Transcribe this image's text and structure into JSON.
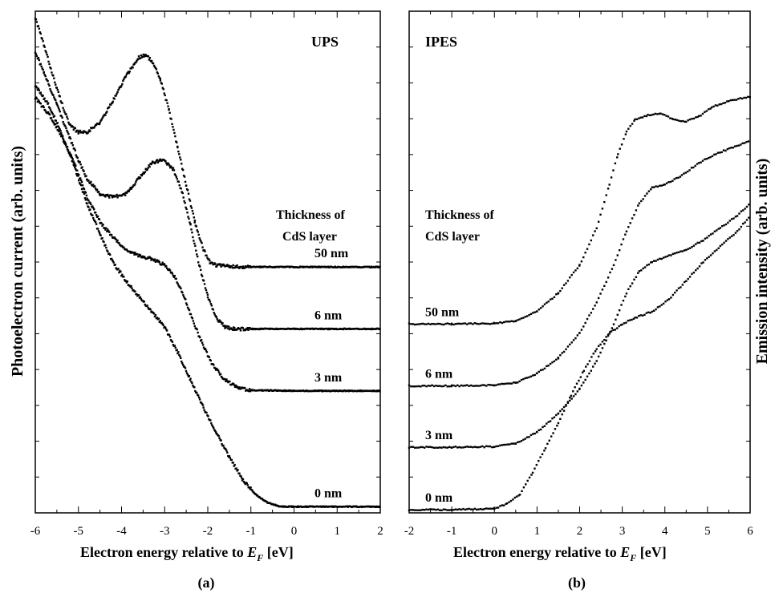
{
  "chart_data": [
    {
      "type": "scatter",
      "panel_label": "(a)",
      "annotation": "UPS",
      "xlabel_prefix": "Electron energy relative to",
      "xlabel_symbol": "E",
      "xlabel_subscript": "F",
      "xlabel_unit": "[eV]",
      "ylabel": "Photoelectron current  (arb. units)",
      "xlim": [
        -6,
        2
      ],
      "xticks": [
        "-6",
        "-5",
        "-4",
        "-3",
        "-2",
        "-1",
        "0",
        "1",
        "2"
      ],
      "legend_title": [
        "Thickness of",
        "CdS layer"
      ],
      "series": [
        {
          "name": "50 nm",
          "baseline": 3,
          "points": [
            [
              -6.0,
              7.9
            ],
            [
              -5.8,
              7.45
            ],
            [
              -5.5,
              6.75
            ],
            [
              -5.2,
              6.15
            ],
            [
              -5.0,
              6.05
            ],
            [
              -4.8,
              6.05
            ],
            [
              -4.5,
              6.2
            ],
            [
              -4.2,
              6.55
            ],
            [
              -3.9,
              6.95
            ],
            [
              -3.6,
              7.25
            ],
            [
              -3.45,
              7.3
            ],
            [
              -3.3,
              7.2
            ],
            [
              -3.1,
              6.9
            ],
            [
              -2.9,
              6.4
            ],
            [
              -2.7,
              5.8
            ],
            [
              -2.5,
              5.2
            ],
            [
              -2.3,
              4.6
            ],
            [
              -2.1,
              4.15
            ],
            [
              -1.95,
              3.95
            ],
            [
              -1.8,
              3.9
            ],
            [
              -1.5,
              3.88
            ],
            [
              -1.0,
              3.87
            ],
            [
              0,
              3.87
            ],
            [
              1.0,
              3.87
            ],
            [
              2.0,
              3.87
            ]
          ]
        },
        {
          "name": "6 nm",
          "baseline": 2,
          "points": [
            [
              -6.0,
              7.35
            ],
            [
              -5.8,
              7.0
            ],
            [
              -5.5,
              6.5
            ],
            [
              -5.2,
              5.95
            ],
            [
              -5.0,
              5.6
            ],
            [
              -4.8,
              5.3
            ],
            [
              -4.5,
              5.05
            ],
            [
              -4.2,
              5.0
            ],
            [
              -3.9,
              5.05
            ],
            [
              -3.6,
              5.3
            ],
            [
              -3.3,
              5.55
            ],
            [
              -3.05,
              5.6
            ],
            [
              -2.8,
              5.45
            ],
            [
              -2.6,
              5.1
            ],
            [
              -2.4,
              4.55
            ],
            [
              -2.2,
              3.9
            ],
            [
              -2.0,
              3.4
            ],
            [
              -1.8,
              3.05
            ],
            [
              -1.6,
              2.9
            ],
            [
              -1.4,
              2.87
            ],
            [
              -1.0,
              2.87
            ],
            [
              0,
              2.87
            ],
            [
              1.0,
              2.87
            ],
            [
              2.0,
              2.87
            ]
          ]
        },
        {
          "name": "3 nm",
          "baseline": 1,
          "points": [
            [
              -6.0,
              6.6
            ],
            [
              -5.7,
              6.35
            ],
            [
              -5.4,
              6.0
            ],
            [
              -5.1,
              5.55
            ],
            [
              -4.8,
              5.0
            ],
            [
              -4.5,
              4.6
            ],
            [
              -4.2,
              4.35
            ],
            [
              -3.9,
              4.15
            ],
            [
              -3.6,
              4.05
            ],
            [
              -3.3,
              4.0
            ],
            [
              -3.0,
              3.9
            ],
            [
              -2.75,
              3.7
            ],
            [
              -2.5,
              3.3
            ],
            [
              -2.2,
              2.75
            ],
            [
              -1.9,
              2.3
            ],
            [
              -1.6,
              2.05
            ],
            [
              -1.3,
              1.92
            ],
            [
              -1.0,
              1.88
            ],
            [
              0,
              1.87
            ],
            [
              1.0,
              1.87
            ],
            [
              2.0,
              1.87
            ]
          ]
        },
        {
          "name": "0 nm",
          "baseline": 0,
          "points": [
            [
              -6.0,
              6.8
            ],
            [
              -5.7,
              6.5
            ],
            [
              -5.4,
              6.05
            ],
            [
              -5.1,
              5.5
            ],
            [
              -4.8,
              4.9
            ],
            [
              -4.5,
              4.4
            ],
            [
              -4.2,
              3.95
            ],
            [
              -3.9,
              3.65
            ],
            [
              -3.6,
              3.4
            ],
            [
              -3.3,
              3.15
            ],
            [
              -3.0,
              2.9
            ],
            [
              -2.7,
              2.5
            ],
            [
              -2.4,
              2.05
            ],
            [
              -2.1,
              1.6
            ],
            [
              -1.8,
              1.2
            ],
            [
              -1.5,
              0.8
            ],
            [
              -1.2,
              0.45
            ],
            [
              -0.9,
              0.2
            ],
            [
              -0.6,
              0.06
            ],
            [
              -0.3,
              0.0
            ],
            [
              0,
              0.0
            ],
            [
              1.0,
              0.0
            ],
            [
              2.0,
              0.0
            ]
          ]
        }
      ]
    },
    {
      "type": "scatter",
      "panel_label": "(b)",
      "annotation": "IPES",
      "xlabel_prefix": "Electron energy relative to",
      "xlabel_symbol": "E",
      "xlabel_subscript": "F",
      "xlabel_unit": "[eV]",
      "ylabel": "Emission intensity (arb. units)",
      "xlim": [
        -2,
        6
      ],
      "xticks": [
        "-2",
        "-1",
        "0",
        "1",
        "2",
        "3",
        "4",
        "5",
        "6"
      ],
      "legend_title": [
        "Thickness of",
        "CdS layer"
      ],
      "series": [
        {
          "name": "50 nm",
          "baseline": 3,
          "points": [
            [
              -2.0,
              2.95
            ],
            [
              -1.0,
              2.95
            ],
            [
              0.0,
              2.96
            ],
            [
              0.5,
              3.0
            ],
            [
              1.0,
              3.15
            ],
            [
              1.5,
              3.45
            ],
            [
              2.0,
              3.9
            ],
            [
              2.4,
              4.5
            ],
            [
              2.7,
              5.2
            ],
            [
              2.9,
              5.7
            ],
            [
              3.1,
              6.05
            ],
            [
              3.3,
              6.25
            ],
            [
              3.6,
              6.32
            ],
            [
              3.9,
              6.35
            ],
            [
              4.2,
              6.25
            ],
            [
              4.5,
              6.22
            ],
            [
              4.8,
              6.3
            ],
            [
              5.1,
              6.45
            ],
            [
              5.5,
              6.55
            ],
            [
              6.0,
              6.62
            ]
          ]
        },
        {
          "name": "6 nm",
          "baseline": 2,
          "points": [
            [
              -2.0,
              1.95
            ],
            [
              -1.0,
              1.95
            ],
            [
              0.0,
              1.96
            ],
            [
              0.5,
              2.0
            ],
            [
              1.0,
              2.15
            ],
            [
              1.5,
              2.4
            ],
            [
              2.0,
              2.8
            ],
            [
              2.4,
              3.3
            ],
            [
              2.8,
              3.9
            ],
            [
              3.1,
              4.45
            ],
            [
              3.4,
              4.9
            ],
            [
              3.7,
              5.15
            ],
            [
              4.0,
              5.2
            ],
            [
              4.4,
              5.35
            ],
            [
              4.8,
              5.55
            ],
            [
              5.2,
              5.7
            ],
            [
              5.6,
              5.8
            ],
            [
              6.0,
              5.92
            ]
          ]
        },
        {
          "name": "3 nm",
          "baseline": 1,
          "points": [
            [
              -2.0,
              0.96
            ],
            [
              -1.0,
              0.96
            ],
            [
              0.0,
              0.97
            ],
            [
              0.5,
              1.02
            ],
            [
              1.0,
              1.2
            ],
            [
              1.5,
              1.5
            ],
            [
              2.0,
              1.9
            ],
            [
              2.4,
              2.35
            ],
            [
              2.8,
              2.95
            ],
            [
              3.1,
              3.45
            ],
            [
              3.4,
              3.8
            ],
            [
              3.7,
              3.95
            ],
            [
              4.1,
              4.05
            ],
            [
              4.5,
              4.15
            ],
            [
              4.9,
              4.3
            ],
            [
              5.3,
              4.5
            ],
            [
              5.7,
              4.7
            ],
            [
              6.0,
              4.9
            ]
          ]
        },
        {
          "name": "0 nm",
          "baseline": 0,
          "points": [
            [
              -2.0,
              -0.05
            ],
            [
              -1.0,
              -0.05
            ],
            [
              0.0,
              -0.03
            ],
            [
              0.3,
              0.05
            ],
            [
              0.6,
              0.2
            ],
            [
              0.9,
              0.55
            ],
            [
              1.2,
              0.95
            ],
            [
              1.5,
              1.35
            ],
            [
              1.8,
              1.8
            ],
            [
              2.1,
              2.2
            ],
            [
              2.4,
              2.55
            ],
            [
              2.7,
              2.8
            ],
            [
              3.0,
              2.95
            ],
            [
              3.3,
              3.05
            ],
            [
              3.7,
              3.15
            ],
            [
              4.1,
              3.35
            ],
            [
              4.5,
              3.65
            ],
            [
              4.9,
              3.95
            ],
            [
              5.3,
              4.2
            ],
            [
              5.7,
              4.45
            ],
            [
              6.0,
              4.7
            ]
          ]
        }
      ]
    }
  ]
}
